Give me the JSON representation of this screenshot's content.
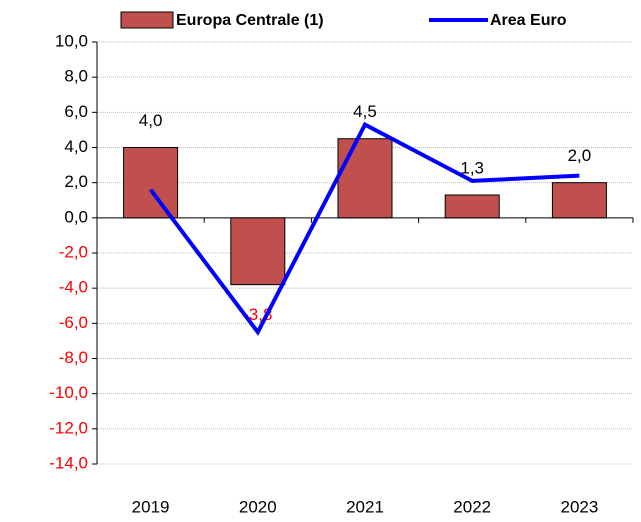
{
  "chart_data": {
    "type": "bar_line",
    "categories": [
      "2019",
      "2020",
      "2021",
      "2022",
      "2023"
    ],
    "series": [
      {
        "name": "Europa Centrale (1)",
        "type": "bar",
        "color": "#c0504d",
        "values": [
          4.0,
          -3.8,
          4.5,
          1.3,
          2.0
        ],
        "value_labels": [
          "4,0",
          "-3,8",
          "4,5",
          "1,3",
          "2,0"
        ]
      },
      {
        "name": "Area Euro",
        "type": "line",
        "color": "#0000ff",
        "values": [
          1.6,
          -6.5,
          5.3,
          2.1,
          2.4
        ]
      }
    ],
    "ylim": [
      -14,
      10
    ],
    "yticks": [
      {
        "value": -14,
        "label": "-14,0"
      },
      {
        "value": -12,
        "label": "-12,0"
      },
      {
        "value": -10,
        "label": "-10,0"
      },
      {
        "value": -8,
        "label": "-8,0"
      },
      {
        "value": -6,
        "label": "-6,0"
      },
      {
        "value": -4,
        "label": "-4,0"
      },
      {
        "value": -2,
        "label": "-2,0"
      },
      {
        "value": 0,
        "label": "0,0"
      },
      {
        "value": 2,
        "label": "2,0"
      },
      {
        "value": 4,
        "label": "4,0"
      },
      {
        "value": 6,
        "label": "6,0"
      },
      {
        "value": 8,
        "label": "8,0"
      },
      {
        "value": 10,
        "label": "10,0"
      }
    ],
    "grid": true,
    "legend": "top",
    "negative_color": "#ff0000"
  }
}
